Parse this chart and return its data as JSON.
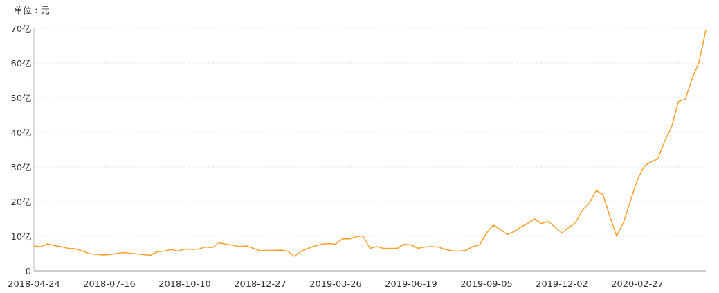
{
  "chart_data": {
    "type": "line",
    "ylabel": "单位：元",
    "categories": [
      "2018-04-24",
      null,
      null,
      null,
      null,
      null,
      null,
      null,
      null,
      null,
      null,
      "2018-07-16",
      null,
      null,
      null,
      null,
      null,
      null,
      null,
      null,
      null,
      null,
      "2018-10-10",
      null,
      null,
      null,
      null,
      null,
      null,
      null,
      null,
      null,
      null,
      "2018-12-27",
      null,
      null,
      null,
      null,
      null,
      null,
      null,
      null,
      null,
      null,
      "2019-03-26",
      null,
      null,
      null,
      null,
      null,
      null,
      null,
      null,
      null,
      null,
      "2019-06-19",
      null,
      null,
      null,
      null,
      null,
      null,
      null,
      null,
      null,
      null,
      "2019-09-05",
      null,
      null,
      null,
      null,
      null,
      null,
      null,
      null,
      null,
      null,
      "2019-12-02",
      null,
      null,
      null,
      null,
      null,
      null,
      null,
      null,
      null,
      null,
      "2020-02-27",
      null,
      null,
      null,
      null,
      null,
      null,
      null,
      null,
      null,
      null
    ],
    "series": [
      {
        "color": "#ff9f2a",
        "values": [
          7.2,
          7.0,
          7.8,
          7.3,
          7.0,
          6.5,
          6.4,
          5.8,
          5.0,
          4.8,
          4.6,
          4.7,
          5.0,
          5.3,
          5.1,
          4.9,
          4.7,
          4.5,
          5.5,
          5.7,
          6.2,
          5.7,
          6.3,
          6.2,
          6.3,
          6.9,
          6.7,
          8.1,
          7.7,
          7.4,
          7.0,
          7.2,
          6.5,
          5.8,
          5.9,
          5.9,
          6.0,
          5.7,
          4.2,
          5.7,
          6.5,
          7.2,
          7.7,
          7.9,
          7.7,
          9.3,
          9.2,
          9.9,
          10.1,
          6.5,
          7.0,
          6.5,
          6.5,
          6.5,
          7.7,
          7.5,
          6.5,
          6.9,
          7.0,
          6.9,
          6.2,
          5.8,
          5.7,
          5.9,
          7.0,
          7.5,
          10.9,
          13.2,
          12.0,
          10.5,
          11.3,
          12.6,
          13.7,
          15.0,
          13.7,
          14.3,
          12.6,
          11.0,
          12.5,
          14.0,
          17.5,
          19.5,
          23.2,
          22.0,
          15.7,
          10.0,
          14.0,
          20.2,
          26.2,
          30.2,
          31.5,
          32.3,
          37.5,
          41.5,
          48.9,
          49.5,
          55.5,
          60.2,
          69.5
        ]
      }
    ],
    "ylim": [
      0,
      70
    ],
    "yticks": [
      0,
      {
        "value": 10,
        "label": "10亿"
      },
      {
        "value": 20,
        "label": "20亿"
      },
      {
        "value": 30,
        "label": "30亿"
      },
      {
        "value": 40,
        "label": "40亿"
      },
      {
        "value": 50,
        "label": "50亿"
      },
      {
        "value": 60,
        "label": "60亿"
      },
      {
        "value": 70,
        "label": "70亿"
      }
    ],
    "grid": "y"
  }
}
